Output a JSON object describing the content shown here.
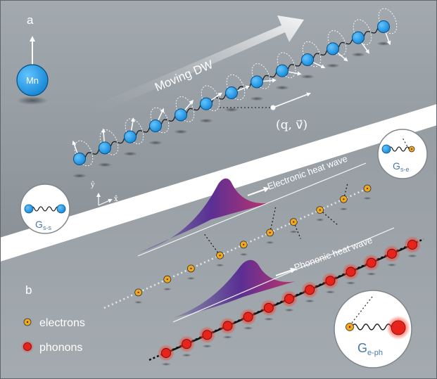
{
  "panel_a": {
    "label": "a",
    "mn_label": "Mn",
    "moving_dw": "Moving DW",
    "q_v_label": "(q, v⃗)",
    "axis_y": "ŷ",
    "axis_x": "x̂",
    "coupling_ss": "G",
    "coupling_ss_sub": "s-s",
    "coupling_se": "G",
    "coupling_se_sub": "s-e"
  },
  "panel_b": {
    "label": "b",
    "electronic_wave": "Electronic heat wave",
    "phononic_wave": "Phononic heat wave",
    "legend": [
      {
        "label": "electrons",
        "color": "#f2a81d"
      },
      {
        "label": "phonons",
        "color": "#e8231c"
      }
    ],
    "coupling_eph": "G",
    "coupling_eph_sub": "e-ph"
  },
  "colors": {
    "background": "#8f979e",
    "spin": "#1a9be8",
    "electron": "#f2a81d",
    "phonon": "#e8231c",
    "heat_wave_start": "#3a2a8c",
    "heat_wave_end": "#c2336b"
  }
}
